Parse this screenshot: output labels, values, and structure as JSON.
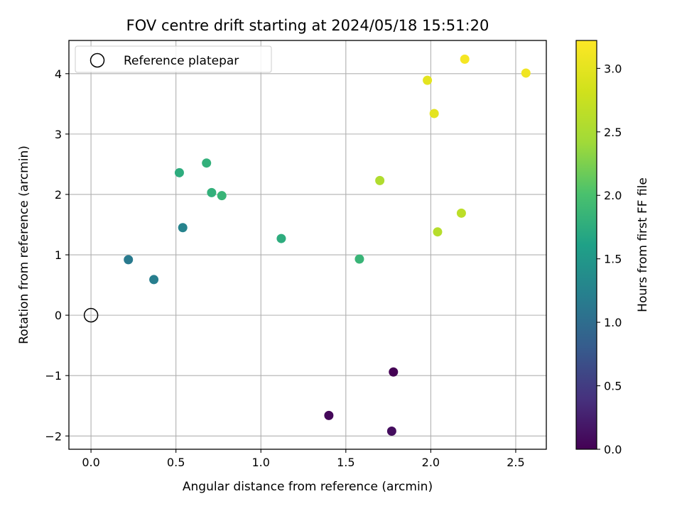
{
  "chart_data": {
    "type": "scatter",
    "title": "FOV centre drift starting at 2024/05/18 15:51:20",
    "xlabel": "Angular distance from reference (arcmin)",
    "ylabel": "Rotation from reference (arcmin)",
    "xlim": [
      -0.13,
      2.68
    ],
    "ylim": [
      -2.22,
      4.55
    ],
    "xticks": [
      0.0,
      0.5,
      1.0,
      1.5,
      2.0,
      2.5
    ],
    "xtick_labels": [
      "0.0",
      "0.5",
      "1.0",
      "1.5",
      "2.0",
      "2.5"
    ],
    "yticks": [
      -2,
      -1,
      0,
      1,
      2,
      3,
      4
    ],
    "ytick_labels": [
      "−2",
      "−1",
      "0",
      "1",
      "2",
      "3",
      "4"
    ],
    "grid": true,
    "legend": {
      "placement": "top-left",
      "entries": [
        "Reference platepar"
      ]
    },
    "reference_point": {
      "x": 0.0,
      "y": 0.0,
      "marker": "open-circle"
    },
    "colorbar": {
      "label": "Hours from first FF file",
      "range": [
        0.0,
        3.22
      ],
      "ticks": [
        0.0,
        0.5,
        1.0,
        1.5,
        2.0,
        2.5,
        3.0
      ],
      "tick_labels": [
        "0.0",
        "0.5",
        "1.0",
        "1.5",
        "2.0",
        "2.5",
        "3.0"
      ],
      "colormap": "viridis"
    },
    "points": [
      {
        "x": 1.78,
        "y": -0.94,
        "t": 0.0
      },
      {
        "x": 1.4,
        "y": -1.66,
        "t": 0.05
      },
      {
        "x": 1.77,
        "y": -1.92,
        "t": 0.1
      },
      {
        "x": 0.22,
        "y": 0.92,
        "t": 1.15
      },
      {
        "x": 0.37,
        "y": 0.59,
        "t": 1.2
      },
      {
        "x": 0.54,
        "y": 1.45,
        "t": 1.25
      },
      {
        "x": 0.52,
        "y": 2.36,
        "t": 1.75
      },
      {
        "x": 0.68,
        "y": 2.52,
        "t": 1.8
      },
      {
        "x": 0.71,
        "y": 2.03,
        "t": 1.8
      },
      {
        "x": 0.77,
        "y": 1.98,
        "t": 1.85
      },
      {
        "x": 1.12,
        "y": 1.27,
        "t": 1.75
      },
      {
        "x": 1.58,
        "y": 0.93,
        "t": 1.85
      },
      {
        "x": 1.7,
        "y": 2.23,
        "t": 2.55
      },
      {
        "x": 2.04,
        "y": 1.38,
        "t": 2.6
      },
      {
        "x": 2.18,
        "y": 1.69,
        "t": 2.65
      },
      {
        "x": 2.02,
        "y": 3.34,
        "t": 3.0
      },
      {
        "x": 1.98,
        "y": 3.89,
        "t": 3.0
      },
      {
        "x": 2.2,
        "y": 4.24,
        "t": 3.15
      },
      {
        "x": 2.56,
        "y": 4.01,
        "t": 3.1
      }
    ]
  }
}
